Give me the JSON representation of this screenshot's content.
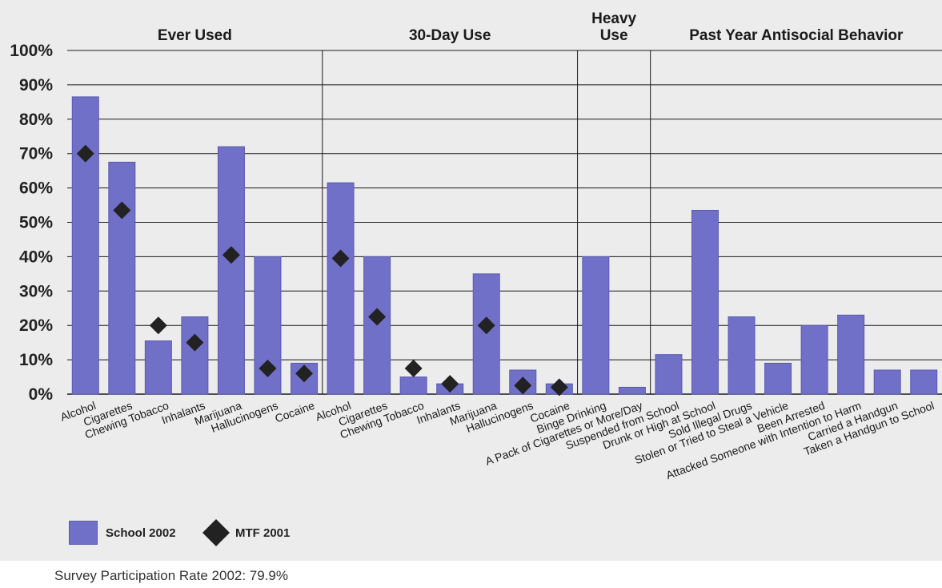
{
  "chart_data": {
    "type": "bar",
    "ylim": [
      0,
      100
    ],
    "yticks": [
      "0%",
      "10%",
      "20%",
      "30%",
      "40%",
      "50%",
      "60%",
      "70%",
      "80%",
      "90%",
      "100%"
    ],
    "grid": true,
    "legend_position": "bottom-left",
    "groups": [
      {
        "label": "Ever Used",
        "count": 7
      },
      {
        "label": "30-Day Use",
        "count": 7
      },
      {
        "label": "Heavy Use",
        "label_lines": [
          "Heavy",
          "Use"
        ],
        "count": 2
      },
      {
        "label": "Past Year Antisocial Behavior",
        "count": 8
      }
    ],
    "categories": [
      "Alcohol",
      "Cigarettes",
      "Chewing Tobacco",
      "Inhalants",
      "Marijuana",
      "Hallucinogens",
      "Cocaine",
      "Alcohol",
      "Cigarettes",
      "Chewing Tobacco",
      "Inhalants",
      "Marijuana",
      "Hallucinogens",
      "Cocaine",
      "Binge Drinking",
      "A Pack of Cigarettes or More/Day",
      "Suspended from School",
      "Drunk or High at School",
      "Sold Illegal Drugs",
      "Stolen or Tried to Steal a Vehicle",
      "Been Arrested",
      "Attacked Someone with Intention to Harm",
      "Carried a Handgun",
      "Taken a Handgun to School"
    ],
    "series": [
      {
        "name": "School 2002",
        "kind": "bar",
        "color": "#7070c8",
        "values": [
          86.5,
          67.5,
          15.5,
          22.5,
          72,
          40,
          9,
          61.5,
          40,
          5,
          3,
          35,
          7,
          3,
          40,
          2,
          11.5,
          53.5,
          22.5,
          9,
          20,
          23,
          7,
          7
        ]
      },
      {
        "name": "MTF 2001",
        "kind": "marker",
        "color": "#222222",
        "values": [
          70,
          53.5,
          20,
          15,
          40.5,
          7.5,
          6,
          39.5,
          22.5,
          7.5,
          3,
          20,
          2.5,
          2,
          null,
          null,
          null,
          null,
          null,
          null,
          null,
          null,
          null,
          null
        ]
      }
    ]
  },
  "footnote": "Survey Participation Rate 2002: 79.9%"
}
